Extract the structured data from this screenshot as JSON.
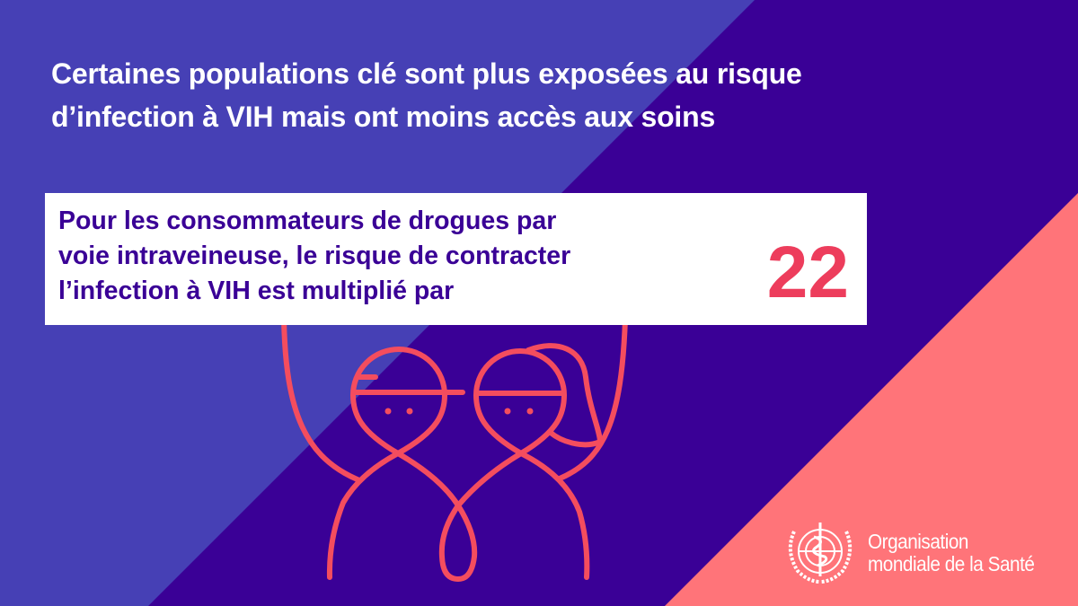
{
  "headline": {
    "line1": "Certaines populations clé sont plus exposées au risque",
    "line2": "d’infection à VIH mais ont moins accès aux soins"
  },
  "fact_box": {
    "line1": "Pour les consommateurs de drogues par",
    "line2": "voie intraveineuse, le risque de contracter",
    "line3": "l’infection à VIH est multiplié par",
    "multiplier": "22"
  },
  "logo": {
    "icon": "who-emblem-icon",
    "line1": "Organisation",
    "line2": "mondiale de la Santé"
  },
  "colors": {
    "background_light": "#4640b5",
    "background_dark": "#3a0096",
    "background_pink": "#ff7479",
    "illustration_stroke": "#f44d5e",
    "multiplier": "#ed3d5c"
  },
  "illustration": "two-people-holding-sign-icon"
}
